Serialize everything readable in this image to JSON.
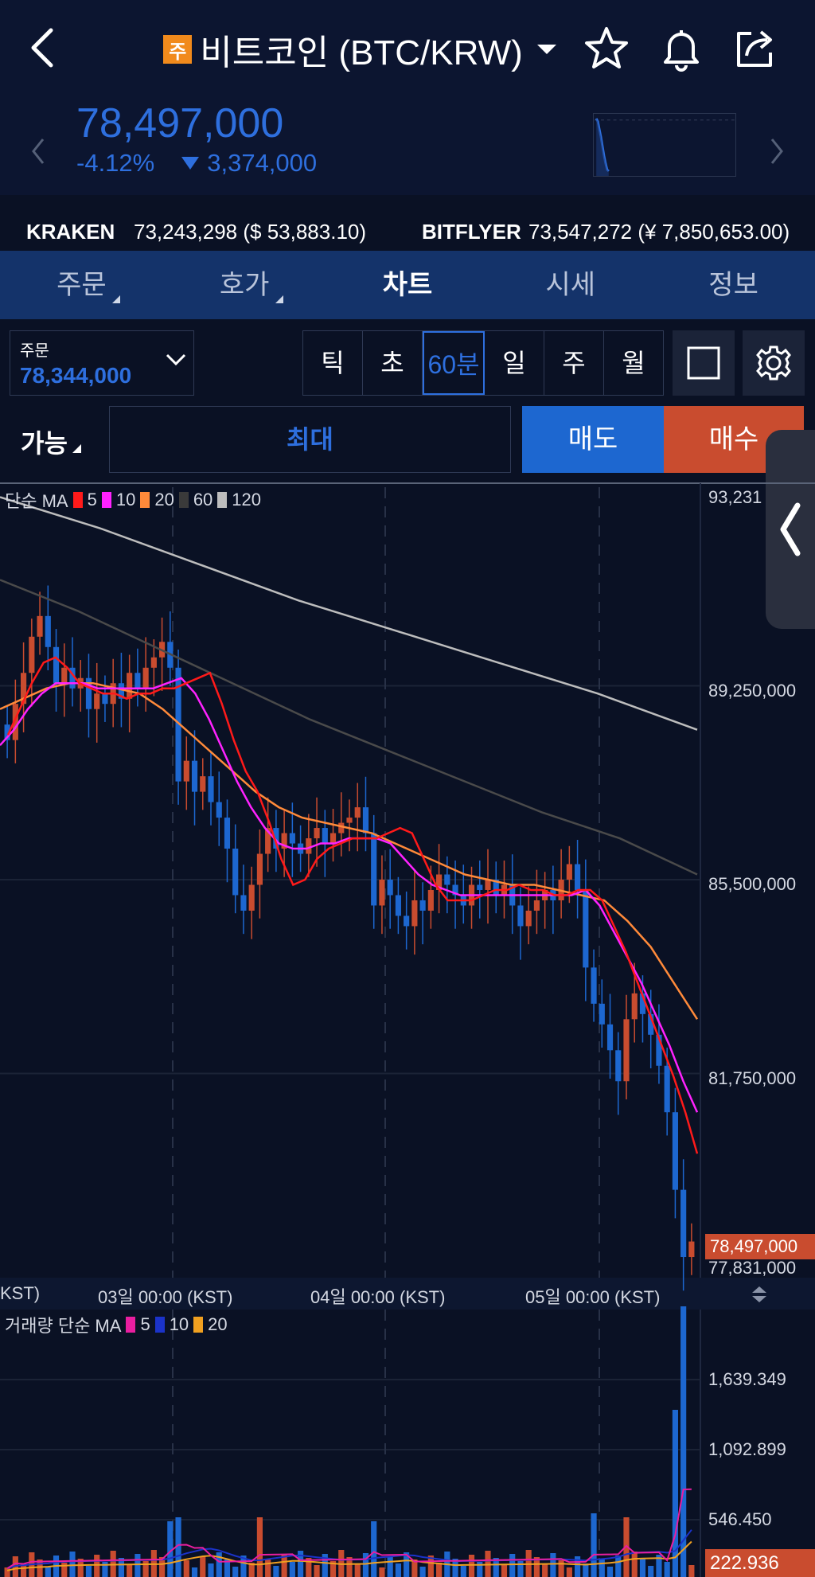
{
  "header": {
    "badge": "주",
    "title": "비트코인 (BTC/KRW)"
  },
  "price": {
    "current": "78,497,000",
    "change_pct": "-4.12%",
    "change_abs": "3,374,000"
  },
  "exchanges": [
    {
      "name": "KRAKEN",
      "value": "73,243,298 ($ 53,883.10)"
    },
    {
      "name": "BITFLYER",
      "value": "73,547,272 (¥ 7,850,653.00)"
    }
  ],
  "tabs": [
    "주문",
    "호가",
    "차트",
    "시세",
    "정보"
  ],
  "order": {
    "label": "주문",
    "value": "78,344,000"
  },
  "periods": [
    "틱",
    "초",
    "60분",
    "일",
    "주",
    "월"
  ],
  "trade": {
    "available": "가능",
    "max": "최대",
    "sell": "매도",
    "buy": "매수"
  },
  "colors": {
    "up": "#c94c2f",
    "down": "#1d67d0",
    "accent": "#2e6fde"
  },
  "chart_data": {
    "type": "candlestick",
    "ma_legend": {
      "label": "단순 MA",
      "items": [
        {
          "period": "5",
          "color": "#ff1a1a"
        },
        {
          "period": "10",
          "color": "#ff22ff"
        },
        {
          "period": "20",
          "color": "#ff8a3a"
        },
        {
          "period": "60",
          "color": "#3a3a3a"
        },
        {
          "period": "120",
          "color": "#bdbdbd"
        }
      ]
    },
    "y_ticks": [
      "93,231",
      "89,250,000",
      "85,500,000",
      "81,750,000",
      "77,831,000"
    ],
    "current_price_tag": "78,497,000",
    "x_ticks": [
      "KST)",
      "03일 00:00 (KST)",
      "04일 00:00 (KST)",
      "05일 00:00 (KST)"
    ],
    "closes": [
      88.2,
      88.9,
      89.5,
      90.2,
      90.6,
      90.0,
      89.3,
      89.6,
      89.2,
      89.4,
      88.8,
      89.1,
      88.9,
      89.3,
      89.0,
      89.5,
      89.2,
      89.6,
      89.8,
      90.1,
      89.6,
      87.4,
      87.8,
      87.2,
      87.5,
      87.0,
      86.7,
      86.1,
      85.2,
      84.9,
      85.4,
      86.0,
      86.5,
      86.1,
      86.4,
      86.2,
      86.0,
      86.3,
      86.5,
      86.2,
      86.4,
      86.6,
      86.7,
      86.9,
      86.4,
      85.0,
      85.5,
      85.2,
      84.8,
      84.6,
      85.1,
      84.9,
      85.3,
      85.6,
      85.4,
      85.2,
      85.0,
      85.4,
      85.3,
      85.5,
      85.2,
      85.4,
      85.0,
      84.6,
      84.9,
      85.1,
      85.3,
      85.1,
      85.5,
      85.8,
      85.3,
      83.8,
      83.1,
      82.7,
      82.2,
      81.6,
      82.8,
      83.3,
      82.9,
      82.5,
      81.9,
      81.0,
      79.5,
      78.2,
      78.5
    ],
    "ma5": [
      88.3,
      88.8,
      89.3,
      89.7,
      89.8,
      89.6,
      89.3,
      89.2,
      89.1,
      89.1,
      89.0,
      89.1,
      89.1,
      89.2,
      89.2,
      89.3,
      89.4,
      89.5,
      88.9,
      88.2,
      87.6,
      87.2,
      86.6,
      85.9,
      85.4,
      85.5,
      85.9,
      86.1,
      86.2,
      86.3,
      86.3,
      86.3,
      86.4,
      86.5,
      86.4,
      85.9,
      85.4,
      85.1,
      85.1,
      85.1,
      85.2,
      85.3,
      85.3,
      85.4,
      85.3,
      85.3,
      85.2,
      85.2,
      85.3,
      85.3,
      85.1,
      84.6,
      84.1,
      83.5,
      82.9,
      82.3,
      81.7,
      81.0,
      80.2
    ],
    "ma10": [
      88.1,
      88.4,
      88.8,
      89.1,
      89.3,
      89.3,
      89.3,
      89.2,
      89.2,
      89.2,
      89.2,
      89.2,
      89.3,
      89.4,
      89.1,
      88.6,
      88.0,
      87.4,
      86.9,
      86.5,
      86.2,
      86.1,
      86.1,
      86.2,
      86.2,
      86.3,
      86.3,
      86.3,
      86.2,
      85.9,
      85.6,
      85.4,
      85.3,
      85.2,
      85.2,
      85.2,
      85.2,
      85.2,
      85.2,
      85.2,
      85.2,
      85.2,
      85.3,
      85.0,
      84.5,
      84.0,
      83.5,
      82.9,
      82.3,
      81.6,
      81.0
    ],
    "ma20": [
      88.8,
      89.0,
      89.2,
      89.3,
      89.3,
      89.2,
      89.1,
      88.8,
      88.4,
      88.0,
      87.6,
      87.2,
      86.9,
      86.7,
      86.6,
      86.5,
      86.4,
      86.2,
      86.0,
      85.8,
      85.6,
      85.5,
      85.4,
      85.4,
      85.3,
      85.2,
      85.1,
      84.7,
      84.2,
      83.5,
      82.8
    ],
    "ma60": [
      91.3,
      90.7,
      90.0,
      89.3,
      88.6,
      88.0,
      87.4,
      86.8,
      86.3,
      85.6
    ],
    "ma120": [
      92.9,
      92.3,
      91.6,
      90.9,
      90.3,
      89.7,
      89.1,
      88.4
    ]
  },
  "volume_data": {
    "type": "bar",
    "legend": {
      "label": "거래량 단순 MA",
      "items": [
        {
          "period": "5",
          "color": "#e91ea0"
        },
        {
          "period": "10",
          "color": "#1b33c9"
        },
        {
          "period": "20",
          "color": "#f0a020"
        }
      ]
    },
    "y_ticks": [
      "1,639.349",
      "1,092.899",
      "546.450"
    ],
    "current_tag": "222.936"
  }
}
